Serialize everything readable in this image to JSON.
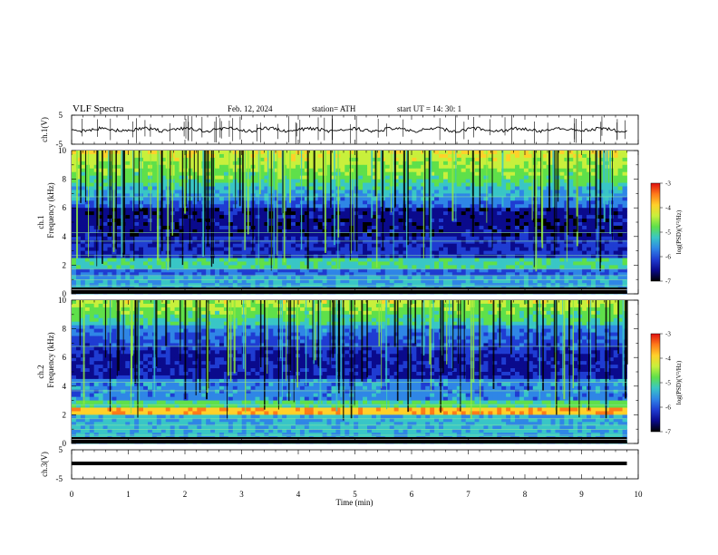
{
  "header": {
    "title": "VLF  Spectra",
    "date": "Feb. 12, 2024",
    "station": "station= ATH",
    "start": "start  UT  =    14: 30: 1"
  },
  "chart_data": {
    "type": "heatmap",
    "xlabel": "Time  (min)",
    "xlim": [
      0,
      10
    ],
    "xticks": [
      "0",
      "1",
      "2",
      "3",
      "4",
      "5",
      "6",
      "7",
      "8",
      "9",
      "10"
    ],
    "data_end_min": 9.8,
    "panels": [
      {
        "name": "ch1-waveform",
        "type": "line",
        "ylabel": "ch.1(V)",
        "ylim": [
          -5,
          5
        ],
        "yticks": [
          "5",
          "-5"
        ],
        "baseline": 0
      },
      {
        "name": "ch1-spectrogram",
        "type": "heatmap",
        "ylabel_line1": "ch.1",
        "ylabel_line2": "Frequency  (kHz)",
        "ylim": [
          0,
          10
        ],
        "yticks": [
          "0",
          "2",
          "4",
          "6",
          "8",
          "10"
        ],
        "colorbar": {
          "label": "log(PSD)(V²/Hz)",
          "range": [
            -7,
            -3
          ],
          "ticks": [
            "-3",
            "-4",
            "-5",
            "-6",
            "-7"
          ]
        }
      },
      {
        "name": "ch2-spectrogram",
        "type": "heatmap",
        "ylabel_line1": "ch.2",
        "ylabel_line2": "Frequency  (kHz)",
        "ylim": [
          0,
          10
        ],
        "yticks": [
          "0",
          "2",
          "4",
          "6",
          "8",
          "10"
        ],
        "colorbar": {
          "label": "log(PSD)(V²/Hz)",
          "range": [
            -7,
            -3
          ],
          "ticks": [
            "-3",
            "-4",
            "-5",
            "-6",
            "-7"
          ]
        }
      },
      {
        "name": "ch3-waveform",
        "type": "line",
        "ylabel": "ch.3(V)",
        "ylim": [
          -5,
          5
        ],
        "yticks": [
          "5",
          "-5"
        ],
        "baseline": 0
      }
    ],
    "colormap": [
      "#000000",
      "#0a0a8c",
      "#1f3cd2",
      "#2f86e6",
      "#39c6c6",
      "#5fe04a",
      "#c8f03c",
      "#ffd12a",
      "#ff7a1a",
      "#e01010",
      "#ffffff"
    ]
  }
}
